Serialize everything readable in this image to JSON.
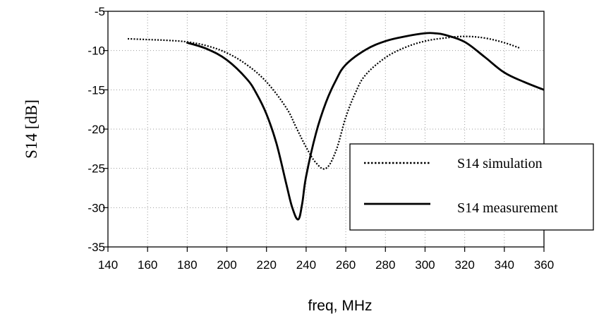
{
  "chart_data": {
    "type": "line",
    "title": "",
    "xlabel": "freq, MHz",
    "ylabel": "S14 [dB]",
    "xlim": [
      140,
      360
    ],
    "ylim": [
      -35,
      -5
    ],
    "xticks": [
      140,
      160,
      180,
      200,
      220,
      240,
      260,
      280,
      300,
      320,
      340,
      360
    ],
    "yticks": [
      -5,
      -10,
      -15,
      -20,
      -25,
      -30,
      -35
    ],
    "grid": true,
    "legend": "bottom-right",
    "series": [
      {
        "name": "S14 simulation",
        "style": "dotted",
        "color": "#000000",
        "x": [
          150,
          160,
          170,
          180,
          190,
          200,
          210,
          220,
          230,
          235,
          240,
          245,
          250,
          255,
          260,
          265,
          270,
          280,
          290,
          300,
          310,
          320,
          330,
          340,
          348
        ],
        "y": [
          -8.5,
          -8.6,
          -8.7,
          -8.9,
          -9.4,
          -10.3,
          -11.8,
          -14.0,
          -17.3,
          -19.8,
          -22.3,
          -24.3,
          -25.0,
          -22.8,
          -18.5,
          -15.3,
          -13.1,
          -10.9,
          -9.6,
          -8.8,
          -8.4,
          -8.2,
          -8.4,
          -9.0,
          -9.7
        ]
      },
      {
        "name": "S14 measurement",
        "style": "solid",
        "color": "#000000",
        "x": [
          180,
          190,
          200,
          210,
          215,
          220,
          225,
          230,
          233,
          236,
          238,
          240,
          245,
          250,
          255,
          260,
          270,
          280,
          290,
          300,
          305,
          310,
          320,
          330,
          340,
          350,
          360
        ],
        "y": [
          -9.0,
          -9.8,
          -11.2,
          -13.6,
          -15.5,
          -18.1,
          -21.8,
          -27.0,
          -30.0,
          -31.5,
          -29.5,
          -26.0,
          -20.5,
          -16.6,
          -13.8,
          -11.8,
          -9.9,
          -8.8,
          -8.2,
          -7.8,
          -7.8,
          -8.0,
          -8.9,
          -10.8,
          -12.8,
          -14.0,
          -15.0
        ]
      }
    ]
  }
}
